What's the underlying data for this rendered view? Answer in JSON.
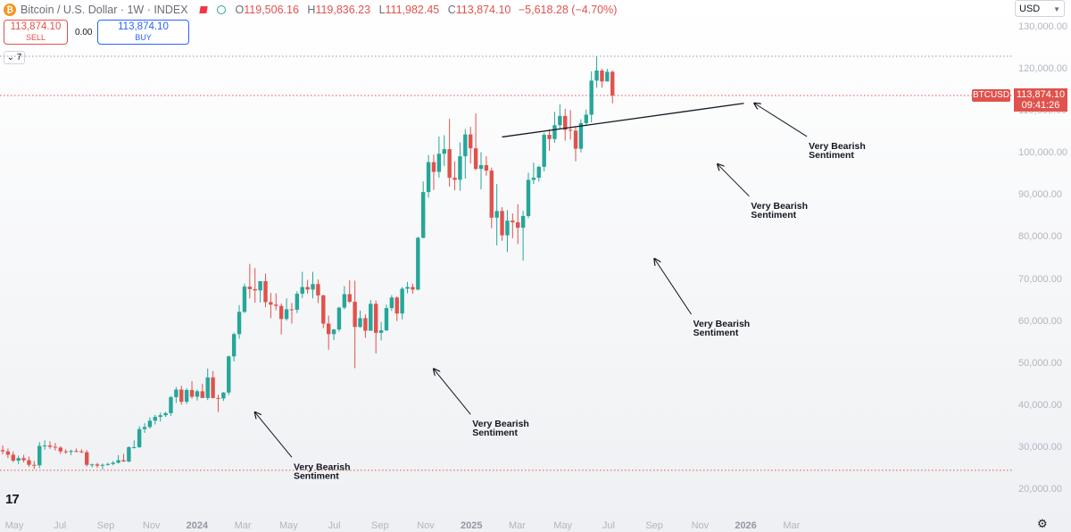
{
  "header": {
    "symbol_icon": "bitcoin-icon",
    "title": "Bitcoin / U.S. Dollar · 1W · INDEX",
    "open": "119,506.16",
    "high": "119,836.23",
    "low": "111,982.45",
    "close": "113,874.10",
    "change": "−5,618.28 (−4.70%)",
    "labels": {
      "o": "O",
      "h": "H",
      "l": "L",
      "c": "C"
    }
  },
  "trade": {
    "sell_price": "113,874.10",
    "sell_label": "SELL",
    "spread": "0.00",
    "buy_price": "113,874.10",
    "buy_label": "BUY"
  },
  "indicator_count": "7",
  "currency": "USD",
  "price_tag": {
    "symbol": "BTCUSD",
    "price": "113,874.10",
    "countdown": "09:41:26"
  },
  "colors": {
    "up": "#26a69a",
    "down": "#e0524d",
    "line_ref": "#e0524d"
  },
  "chart_data": {
    "type": "candlestick",
    "interval": "1W",
    "y_axis": {
      "ticks": [
        "130,000.00",
        "120,000.00",
        "110,000.00",
        "100,000.00",
        "90,000.00",
        "80,000.00",
        "70,000.00",
        "60,000.00",
        "50,000.00",
        "40,000.00",
        "30,000.00",
        "20,000.00"
      ],
      "ylim": [
        18000,
        131500
      ]
    },
    "x_axis": {
      "ticks": [
        {
          "label": "May",
          "bold": false
        },
        {
          "label": "Jul",
          "bold": false
        },
        {
          "label": "Sep",
          "bold": false
        },
        {
          "label": "Nov",
          "bold": false
        },
        {
          "label": "2024",
          "bold": true
        },
        {
          "label": "Mar",
          "bold": false
        },
        {
          "label": "May",
          "bold": false
        },
        {
          "label": "Jul",
          "bold": false
        },
        {
          "label": "Sep",
          "bold": false
        },
        {
          "label": "Nov",
          "bold": false
        },
        {
          "label": "2025",
          "bold": true
        },
        {
          "label": "Mar",
          "bold": false
        },
        {
          "label": "May",
          "bold": false
        },
        {
          "label": "Jul",
          "bold": false
        },
        {
          "label": "Sep",
          "bold": false
        },
        {
          "label": "Nov",
          "bold": false
        },
        {
          "label": "2026",
          "bold": true
        },
        {
          "label": "Mar",
          "bold": false
        }
      ]
    },
    "reference_lines": [
      {
        "value": 123200,
        "style": "dotted",
        "color": "#9598a1"
      },
      {
        "value": 113874.1,
        "style": "dotted",
        "color": "#e0524d"
      },
      {
        "value": 24700,
        "style": "dotted",
        "color": "#e0524d"
      }
    ],
    "trendline": {
      "start_index": 95,
      "start_value": 104000,
      "end_index": 141,
      "end_value": 112000
    },
    "annotations": [
      {
        "text": "Very Bearish\nSentiment",
        "target_index": 48,
        "target_value": 38500,
        "text_index": 55,
        "text_value": 27800
      },
      {
        "text": "Very Bearish\nSentiment",
        "target_index": 82,
        "target_value": 48800,
        "text_index": 89,
        "text_value": 38000
      },
      {
        "text": "Very Bearish\nSentiment",
        "target_index": 124,
        "target_value": 75000,
        "text_index": 131,
        "text_value": 61800
      },
      {
        "text": "Very Bearish\nSentiment",
        "target_index": 136,
        "target_value": 97500,
        "text_index": 142,
        "text_value": 89900
      },
      {
        "text": "Very Bearish\nSentiment",
        "target_index": 143,
        "target_value": 112000,
        "text_index": 153,
        "text_value": 104100
      }
    ],
    "candles": [
      [
        29500,
        30600,
        28500,
        29200
      ],
      [
        29200,
        29900,
        27600,
        28400
      ],
      [
        28400,
        29200,
        26600,
        27000
      ],
      [
        27000,
        28200,
        26200,
        27600
      ],
      [
        27600,
        28400,
        26600,
        27100
      ],
      [
        27100,
        28000,
        25500,
        26000
      ],
      [
        26000,
        26900,
        25000,
        25900
      ],
      [
        25900,
        31400,
        25200,
        30500
      ],
      [
        30500,
        31800,
        29600,
        30600
      ],
      [
        30600,
        31600,
        29800,
        30300
      ],
      [
        30300,
        31200,
        29400,
        30100
      ],
      [
        30100,
        30400,
        28600,
        29200
      ],
      [
        29200,
        29700,
        28600,
        29100
      ],
      [
        29100,
        29600,
        28300,
        29300
      ],
      [
        29300,
        29900,
        29000,
        29200
      ],
      [
        29200,
        29700,
        28800,
        29000
      ],
      [
        29000,
        29500,
        25600,
        26000
      ],
      [
        26000,
        26300,
        25400,
        26100
      ],
      [
        26100,
        26500,
        25300,
        25800
      ],
      [
        25800,
        26300,
        24900,
        26000
      ],
      [
        26000,
        26500,
        25800,
        26200
      ],
      [
        26200,
        26900,
        25900,
        26500
      ],
      [
        26500,
        28300,
        26300,
        27100
      ],
      [
        27100,
        28600,
        26700,
        26800
      ],
      [
        26800,
        30400,
        26600,
        30200
      ],
      [
        30200,
        31800,
        29900,
        30200
      ],
      [
        30200,
        35200,
        30000,
        34500
      ],
      [
        34500,
        35900,
        33600,
        35000
      ],
      [
        35000,
        37300,
        34600,
        36500
      ],
      [
        36500,
        37900,
        35600,
        37400
      ],
      [
        37400,
        38400,
        36300,
        37800
      ],
      [
        37800,
        38600,
        37400,
        38300
      ],
      [
        38300,
        42400,
        37700,
        42100
      ],
      [
        42100,
        44500,
        40700,
        43900
      ],
      [
        43900,
        44800,
        40300,
        41000
      ],
      [
        41000,
        44200,
        40500,
        43800
      ],
      [
        43800,
        45900,
        41700,
        42200
      ],
      [
        42200,
        43900,
        41300,
        43500
      ],
      [
        43500,
        45300,
        41900,
        41900
      ],
      [
        41900,
        48900,
        41400,
        46800
      ],
      [
        46800,
        48300,
        41800,
        41900
      ],
      [
        41900,
        42700,
        38600,
        41800
      ],
      [
        41800,
        43300,
        41200,
        43200
      ],
      [
        43200,
        52000,
        42600,
        51800
      ],
      [
        51800,
        57400,
        50600,
        57100
      ],
      [
        57100,
        64000,
        56000,
        62400
      ],
      [
        62400,
        69100,
        62100,
        68400
      ],
      [
        68400,
        73800,
        65600,
        67800
      ],
      [
        67800,
        72800,
        64600,
        67500
      ],
      [
        67500,
        69400,
        64600,
        69700
      ],
      [
        69700,
        71500,
        63500,
        64700
      ],
      [
        64700,
        66900,
        60900,
        64100
      ],
      [
        64100,
        66800,
        62800,
        63800
      ],
      [
        63800,
        64400,
        57000,
        60700
      ],
      [
        60700,
        65600,
        60300,
        63000
      ],
      [
        63000,
        64500,
        59600,
        62900
      ],
      [
        62900,
        67300,
        62100,
        66700
      ],
      [
        66700,
        71900,
        65700,
        68300
      ],
      [
        68300,
        70000,
        66700,
        67700
      ],
      [
        67700,
        71900,
        65600,
        69000
      ],
      [
        69000,
        70100,
        64500,
        66300
      ],
      [
        66300,
        66500,
        58500,
        59600
      ],
      [
        59600,
        61500,
        53400,
        57100
      ],
      [
        57100,
        58300,
        55700,
        58200
      ],
      [
        58200,
        63600,
        57700,
        63400
      ],
      [
        63400,
        68500,
        63000,
        66600
      ],
      [
        66600,
        69900,
        64500,
        64800
      ],
      [
        64800,
        69800,
        49000,
        58800
      ],
      [
        58800,
        62700,
        58600,
        60900
      ],
      [
        60900,
        61800,
        56200,
        57900
      ],
      [
        57900,
        65200,
        57900,
        64300
      ],
      [
        64300,
        65100,
        52500,
        57400
      ],
      [
        57400,
        60000,
        55600,
        58000
      ],
      [
        58000,
        64100,
        57800,
        63300
      ],
      [
        63300,
        66400,
        62600,
        65800
      ],
      [
        65800,
        66100,
        60200,
        62000
      ],
      [
        62000,
        68300,
        60600,
        67900
      ],
      [
        67900,
        69500,
        66800,
        68300
      ],
      [
        68300,
        69100,
        66700,
        67700
      ],
      [
        67700,
        80300,
        67500,
        80000
      ],
      [
        80000,
        93400,
        79900,
        90900
      ],
      [
        90900,
        99700,
        89600,
        98000
      ],
      [
        98000,
        99800,
        91400,
        95700
      ],
      [
        95700,
        104100,
        94300,
        100000
      ],
      [
        100000,
        104400,
        97100,
        101100
      ],
      [
        101100,
        108300,
        92200,
        94300
      ],
      [
        94300,
        98200,
        91300,
        93800
      ],
      [
        93800,
        102700,
        91200,
        99400
      ],
      [
        99400,
        105900,
        94100,
        104600
      ],
      [
        104600,
        106400,
        97700,
        101300
      ],
      [
        101300,
        109600,
        96100,
        96400
      ],
      [
        96400,
        100400,
        91500,
        97300
      ],
      [
        97300,
        99400,
        94800,
        96000
      ],
      [
        96000,
        96700,
        82300,
        84800
      ],
      [
        84800,
        92800,
        78200,
        86400
      ],
      [
        86400,
        87300,
        79300,
        80600
      ],
      [
        80600,
        86600,
        76600,
        84100
      ],
      [
        84100,
        85800,
        79900,
        83700
      ],
      [
        83700,
        88000,
        78500,
        82400
      ],
      [
        82400,
        86400,
        74600,
        85200
      ],
      [
        85200,
        95500,
        84700,
        93800
      ],
      [
        93800,
        97900,
        92800,
        94300
      ],
      [
        94300,
        97200,
        93400,
        96900
      ],
      [
        96900,
        105000,
        95800,
        104500
      ],
      [
        104500,
        105800,
        100700,
        103500
      ],
      [
        103500,
        110000,
        102600,
        106800
      ],
      [
        106800,
        111800,
        106000,
        109000
      ],
      [
        109000,
        110700,
        103100,
        105700
      ],
      [
        105700,
        110400,
        103400,
        105500
      ],
      [
        105500,
        106600,
        98200,
        101200
      ],
      [
        101200,
        108200,
        100300,
        107300
      ],
      [
        107300,
        110500,
        106600,
        109300
      ],
      [
        109300,
        119600,
        107500,
        117400
      ],
      [
        117400,
        123200,
        115700,
        119800
      ],
      [
        119800,
        120200,
        115700,
        117200
      ],
      [
        117200,
        120200,
        117200,
        119500
      ],
      [
        119500,
        119800,
        112000,
        113874
      ]
    ],
    "candles_note": "Each candle is [open, high, low, close], weekly, from early May 2023"
  }
}
